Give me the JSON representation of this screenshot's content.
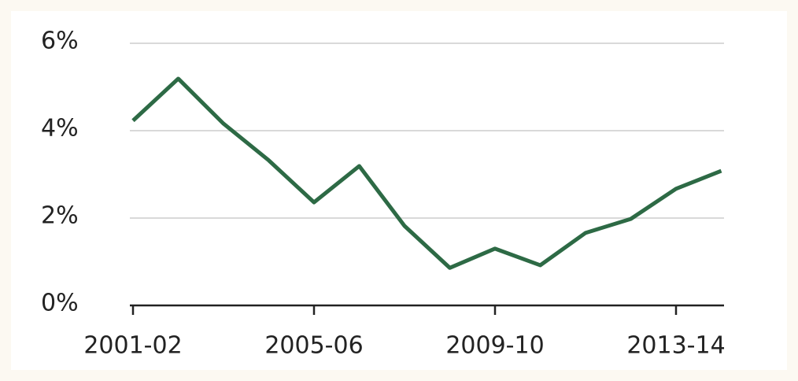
{
  "chart_data": {
    "type": "line",
    "categories": [
      "2001-02",
      null,
      null,
      null,
      "2005-06",
      null,
      null,
      null,
      "2009-10",
      null,
      null,
      null,
      "2013-14",
      null
    ],
    "series": [
      {
        "color": "#2d6a45",
        "values": [
          4.23,
          5.19,
          4.16,
          3.32,
          2.36,
          3.19,
          1.82,
          0.86,
          1.3,
          0.92,
          1.66,
          1.98,
          2.67,
          3.08
        ]
      }
    ],
    "ylim": [
      0,
      6
    ],
    "yticks": [
      {
        "value": 0,
        "label": "0%"
      },
      {
        "value": 2,
        "label": "2%"
      },
      {
        "value": 4,
        "label": "4%"
      },
      {
        "value": 6,
        "label": "6%"
      }
    ],
    "grid": true
  }
}
